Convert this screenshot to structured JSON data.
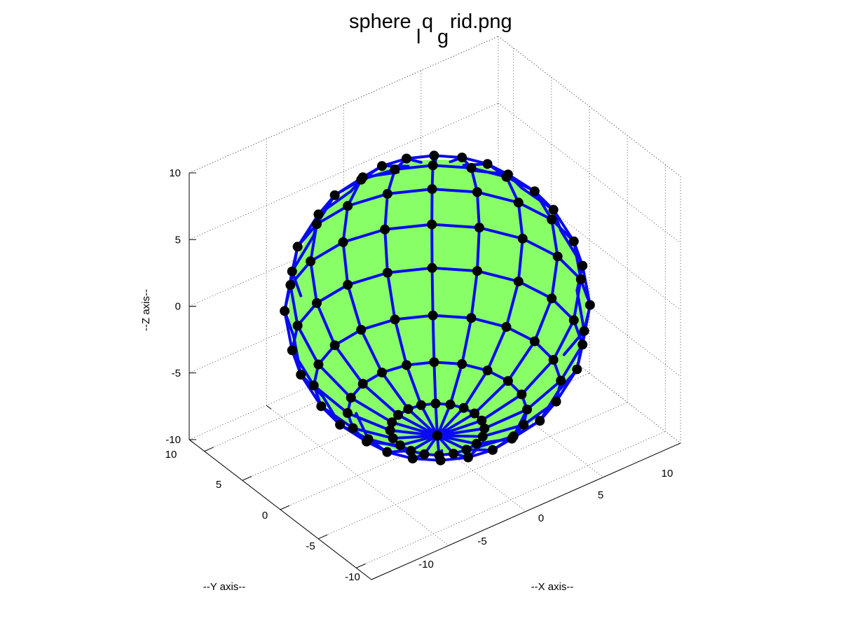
{
  "chart_data": {
    "type": "scatter",
    "subtype": "3d-mesh-sphere",
    "title_parts": {
      "a": "sphere",
      "b": "l",
      "c": "q",
      "d": "g",
      "e": "rid.png"
    },
    "xlabel": "--X axis--",
    "ylabel": "--Y axis--",
    "zlabel": "--Z axis--",
    "xlim": [
      -12,
      12
    ],
    "ylim": [
      -10,
      10
    ],
    "zlim": [
      -10,
      10
    ],
    "xticks": [
      -10,
      -5,
      0,
      5,
      10
    ],
    "yticks": [
      -5,
      0,
      5,
      10
    ],
    "yticks_extra": [
      -10
    ],
    "zticks": [
      -10,
      -5,
      0,
      5,
      10
    ],
    "grid": true,
    "sphere": {
      "center": [
        0,
        0,
        0
      ],
      "radius": 10,
      "lat_bands": 10,
      "lon_segments": 20
    },
    "colors": {
      "surface": "#88ff66",
      "mesh": "#0a0af0",
      "nodes": "#000000",
      "grid": "#555555",
      "axes": "#000000"
    }
  }
}
